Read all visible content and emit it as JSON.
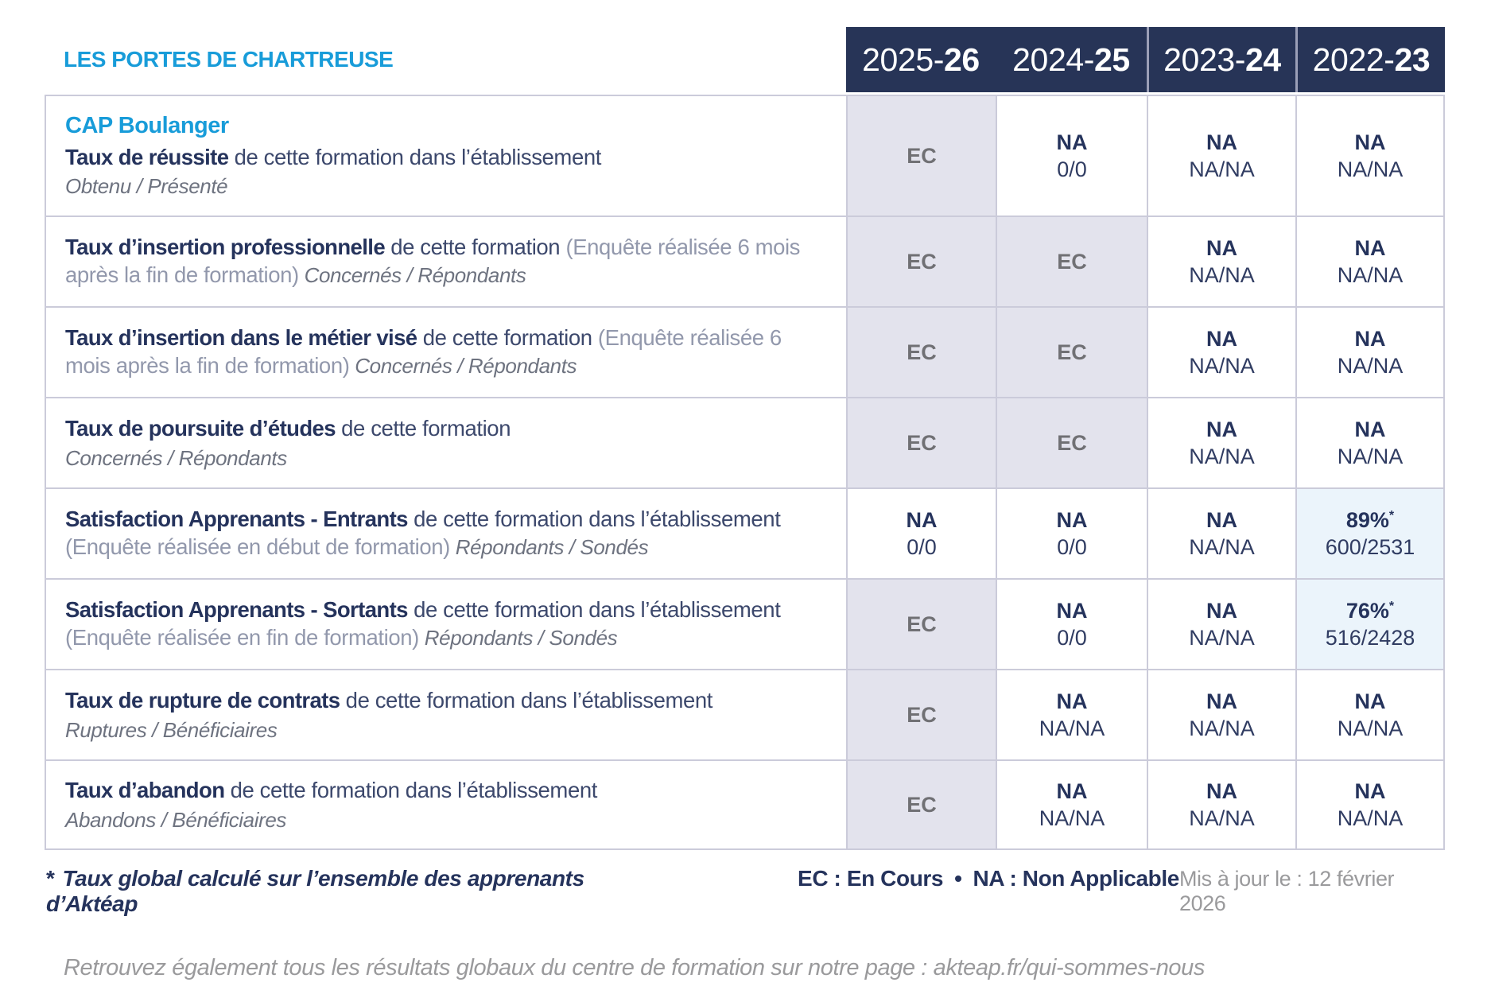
{
  "page": {
    "org_title": "LES PORTES DE CHARTREUSE",
    "course_title": "CAP Boulanger"
  },
  "colors": {
    "brand_blue": "#189CD9",
    "header_navy": "#273457",
    "ec_cell_bg": "#E3E3ED",
    "highlight_cell_bg": "#EBF4FB"
  },
  "table": {
    "year_headers": [
      {
        "prefix": "2025-",
        "suffix": "26"
      },
      {
        "prefix": "2024-",
        "suffix": "25"
      },
      {
        "prefix": "2023-",
        "suffix": "24"
      },
      {
        "prefix": "2022-",
        "suffix": "23"
      }
    ],
    "rows": [
      {
        "title": "Taux de réussite",
        "desc": "de cette formation dans l’établissement",
        "paren": "",
        "sub": "Obtenu / Présenté",
        "sub_own_line": true,
        "values": [
          {
            "v": "EC"
          },
          {
            "v": "NA",
            "d": "0/0"
          },
          {
            "v": "NA",
            "d": "NA/NA"
          },
          {
            "v": "NA",
            "d": "NA/NA"
          }
        ]
      },
      {
        "title": "Taux d’insertion professionnelle",
        "desc": "de cette formation",
        "paren": "(Enquête réalisée 6 mois après la fin de formation)",
        "sub": "Concernés / Répondants",
        "sub_own_line": false,
        "values": [
          {
            "v": "EC"
          },
          {
            "v": "EC"
          },
          {
            "v": "NA",
            "d": "NA/NA"
          },
          {
            "v": "NA",
            "d": "NA/NA"
          }
        ]
      },
      {
        "title": "Taux d’insertion dans le métier visé",
        "desc": "de cette formation",
        "paren": "(Enquête réalisée 6 mois après la fin de formation)",
        "sub": "Concernés / Répondants",
        "sub_own_line": false,
        "values": [
          {
            "v": "EC"
          },
          {
            "v": "EC"
          },
          {
            "v": "NA",
            "d": "NA/NA"
          },
          {
            "v": "NA",
            "d": "NA/NA"
          }
        ]
      },
      {
        "title": "Taux de poursuite d’études",
        "desc": "de cette formation",
        "paren": "",
        "sub": "Concernés / Répondants",
        "sub_own_line": true,
        "values": [
          {
            "v": "EC"
          },
          {
            "v": "EC"
          },
          {
            "v": "NA",
            "d": "NA/NA"
          },
          {
            "v": "NA",
            "d": "NA/NA"
          }
        ]
      },
      {
        "title": "Satisfaction Apprenants - Entrants",
        "desc": "de cette formation dans l’établissement",
        "paren": "(Enquête réalisée en début de formation)",
        "sub": "Répondants / Sondés",
        "sub_own_line": false,
        "values": [
          {
            "v": "NA",
            "d": "0/0"
          },
          {
            "v": "NA",
            "d": "0/0"
          },
          {
            "v": "NA",
            "d": "NA/NA"
          },
          {
            "v": "89%",
            "star": true,
            "d": "600/2531",
            "hl": true
          }
        ]
      },
      {
        "title": "Satisfaction Apprenants - Sortants",
        "desc": "de cette formation dans l’établissement",
        "paren": "(Enquête réalisée en fin de formation)",
        "sub": "Répondants / Sondés",
        "sub_own_line": false,
        "values": [
          {
            "v": "EC"
          },
          {
            "v": "NA",
            "d": "0/0"
          },
          {
            "v": "NA",
            "d": "NA/NA"
          },
          {
            "v": "76%",
            "star": true,
            "d": "516/2428",
            "hl": true
          }
        ]
      },
      {
        "title": "Taux de rupture de contrats",
        "desc": "de cette formation dans l’établissement",
        "paren": "",
        "sub": "Ruptures / Bénéficiaires",
        "sub_own_line": true,
        "values": [
          {
            "v": "EC"
          },
          {
            "v": "NA",
            "d": "NA/NA"
          },
          {
            "v": "NA",
            "d": "NA/NA"
          },
          {
            "v": "NA",
            "d": "NA/NA"
          }
        ]
      },
      {
        "title": "Taux d’abandon",
        "desc": "de cette formation dans l’établissement",
        "paren": "",
        "sub": "Abandons / Bénéficiaires",
        "sub_own_line": true,
        "values": [
          {
            "v": "EC"
          },
          {
            "v": "NA",
            "d": "NA/NA"
          },
          {
            "v": "NA",
            "d": "NA/NA"
          },
          {
            "v": "NA",
            "d": "NA/NA"
          }
        ]
      }
    ]
  },
  "footer": {
    "footnote_star": "*",
    "footnote": "Taux global calculé sur l’ensemble des apprenants d’Aktéap",
    "legend_ec": "EC : En Cours",
    "legend_sep": "•",
    "legend_na": "NA : Non Applicable",
    "updated": "Mis à jour le : 12 février 2026",
    "bottom_note": "Retrouvez également tous les résultats globaux du centre de formation sur notre page : akteap.fr/qui-sommes-nous"
  }
}
